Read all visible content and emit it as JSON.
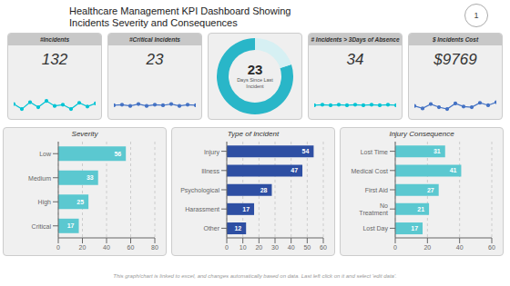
{
  "title": "Healthcare Management KPI Dashboard Showing",
  "subtitle": "Incidents Severity and Consequences",
  "annotations": [
    "This graph/chart is linked to excel, and changes automatically based on data. Last left click on it and select 'edit data'.",
    "1"
  ],
  "chart_data": [
    {
      "type": "line",
      "title": "#Incidents",
      "annotations": [
        "132"
      ],
      "x": [
        0,
        1,
        2,
        3,
        4,
        5,
        6,
        7,
        8,
        9,
        10
      ],
      "values": [
        0.6,
        -0.2,
        0.9,
        0.1,
        1.1,
        0.3,
        0.5,
        -0.2,
        0.8,
        0.2,
        0.7
      ],
      "color": "#00c4d4",
      "marker": "circle",
      "xlim": [
        0,
        10
      ],
      "ylim": [
        -1.5,
        2
      ],
      "tick_labels": false,
      "grid": false
    },
    {
      "type": "line",
      "title": "#Critical Incidents",
      "annotations": [
        "23"
      ],
      "x": [
        0,
        1,
        2,
        3,
        4,
        5,
        6,
        7,
        8,
        9,
        10
      ],
      "values": [
        0.4,
        0.5,
        0.3,
        0.6,
        0.3,
        0.5,
        0.4,
        0.6,
        0.3,
        0.5,
        0.4
      ],
      "color": "#4472c4",
      "marker": "circle",
      "xlim": [
        0,
        10
      ],
      "ylim": [
        -1.5,
        2
      ],
      "tick_labels": false,
      "grid": false
    },
    {
      "type": "pie",
      "values": [
        80,
        20
      ],
      "colors": [
        "#29b6c8",
        "#d6f0f3"
      ],
      "annotations": [
        "23",
        "Days Since Last\nIncident"
      ]
    },
    {
      "type": "line",
      "title": "# Incidents > 3Days of Absence",
      "annotations": [
        "34"
      ],
      "x": [
        0,
        1,
        2,
        3,
        4,
        5,
        6,
        7,
        8,
        9,
        10
      ],
      "values": [
        0.4,
        0.5,
        0.4,
        0.5,
        0.4,
        0.5,
        0.4,
        0.5,
        0.4,
        0.5,
        0.4
      ],
      "color": "#00c4d4",
      "marker": "circle",
      "xlim": [
        0,
        10
      ],
      "ylim": [
        -1.5,
        2
      ],
      "tick_labels": false,
      "grid": false
    },
    {
      "type": "line",
      "title": "$ Incidents Cost",
      "annotations": [
        "$9769"
      ],
      "x": [
        0,
        1,
        2,
        3,
        4,
        5,
        6,
        7,
        8,
        9,
        10
      ],
      "values": [
        0.3,
        -0.1,
        0.6,
        0.1,
        -0.2,
        0.7,
        0.2,
        0.1,
        0.8,
        0.4,
        0.9
      ],
      "color": "#4472c4",
      "marker": "circle",
      "xlim": [
        0,
        10
      ],
      "ylim": [
        -1.5,
        2
      ],
      "tick_labels": false,
      "grid": false
    },
    {
      "type": "bar",
      "orientation": "horizontal",
      "title": "Severity",
      "categories": [
        "Low",
        "Medium",
        "High",
        "Critical"
      ],
      "values": [
        56,
        33,
        25,
        17
      ],
      "color": "#5bc8d0",
      "xlim": [
        0,
        80
      ],
      "xticks": [
        0,
        20,
        40,
        60,
        80
      ],
      "grid": true,
      "data_labels": true
    },
    {
      "type": "bar",
      "orientation": "horizontal",
      "title": "Type of Incident",
      "categories": [
        "Injury",
        "Illness",
        "Psychological",
        "Harassment",
        "Other"
      ],
      "values": [
        54,
        47,
        28,
        17,
        12
      ],
      "color": "#2e4fa3",
      "xlim": [
        0,
        60
      ],
      "xticks": [
        0,
        10,
        20,
        30,
        40,
        50,
        60
      ],
      "grid": true,
      "data_labels": true
    },
    {
      "type": "bar",
      "orientation": "horizontal",
      "title": "Injury Consequence",
      "categories": [
        "Lost Time",
        "Medical Cost",
        "First Aid",
        "No\nTreatment",
        "Lost Day"
      ],
      "values": [
        31,
        41,
        27,
        21,
        17
      ],
      "color": "#5bc8d0",
      "xlim": [
        0,
        60
      ],
      "xticks": [
        0,
        20,
        40,
        60
      ],
      "grid": true,
      "data_labels": true
    }
  ]
}
